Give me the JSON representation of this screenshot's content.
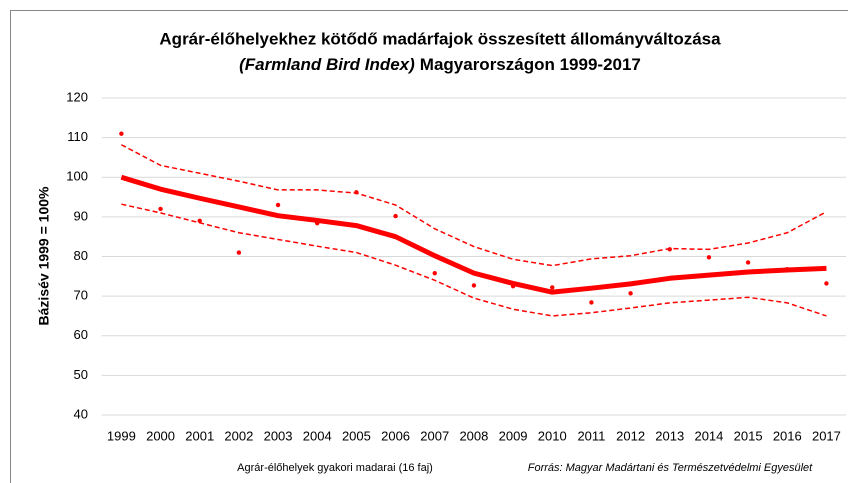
{
  "chart_data": {
    "type": "line",
    "title": {
      "line1": "Agrár-élőhelyekhez kötődő madárfajok összesített állományváltozása",
      "line2_italic": "(Farmland Bird Index)",
      "line2": "Magyarországon 1999-2017"
    },
    "y_axis_label": "Bázisév 1999 = 100%",
    "footnote": "Agrár-élőhelyek gyakori madarai (16 faj)",
    "source": "Forrás: Magyar Madártani és Természetvédelmi Egyesület",
    "categories": [
      "1999",
      "2000",
      "2001",
      "2002",
      "2003",
      "2004",
      "2005",
      "2006",
      "2007",
      "2008",
      "2009",
      "2010",
      "2011",
      "2012",
      "2013",
      "2014",
      "2015",
      "2016",
      "2017"
    ],
    "series": [
      {
        "style": "trend",
        "color": "#ff0000",
        "values": [
          100,
          97,
          94.7,
          92.5,
          90.3,
          89.1,
          87.8,
          85,
          80.2,
          75.8,
          73.2,
          71,
          72,
          73.1,
          74.5,
          75.3,
          76.1,
          76.6,
          77
        ]
      },
      {
        "style": "dashed",
        "color": "#ff0000",
        "values": [
          108.2,
          103,
          101,
          99,
          96.8,
          96.8,
          96,
          93,
          87,
          82.5,
          79.3,
          77.7,
          79.4,
          80.2,
          82,
          81.8,
          83.4,
          86,
          91.3
        ]
      },
      {
        "style": "dashed",
        "color": "#ff0000",
        "values": [
          93.2,
          91,
          88.5,
          86,
          84.3,
          82.6,
          81,
          77.8,
          74,
          69.5,
          66.7,
          65,
          65.8,
          67,
          68.3,
          69,
          69.7,
          68.3,
          65
        ]
      },
      {
        "style": "points",
        "color": "#ff0000",
        "values": [
          111,
          92,
          89,
          81,
          93,
          88.4,
          96.2,
          90.2,
          75.8,
          72.7,
          72.5,
          72.2,
          68.4,
          70.7,
          81.8,
          79.8,
          78.5,
          76.8,
          73.2
        ]
      }
    ],
    "ylim": [
      40,
      120
    ],
    "yticks": [
      40,
      50,
      60,
      70,
      80,
      90,
      100,
      110,
      120
    ],
    "grid": true
  }
}
